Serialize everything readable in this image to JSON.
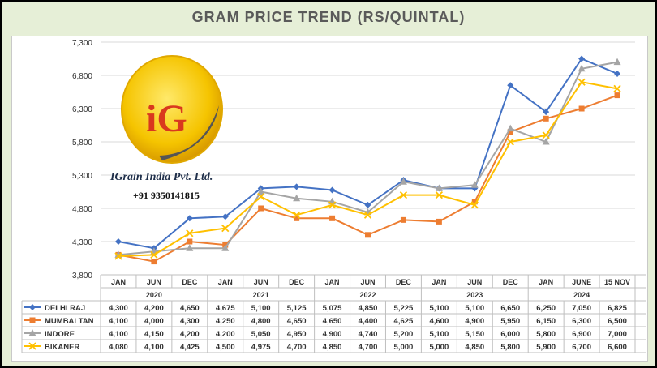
{
  "title": "GRAM PRICE TREND (RS/QUINTAL)",
  "logo": {
    "company": "IGrain India Pvt. Ltd.",
    "phone": "+91 9350141815",
    "mark": "iG"
  },
  "colors": {
    "delhi": "#4472c4",
    "mumbai": "#ed7d31",
    "indore": "#a5a5a5",
    "bikaner": "#ffc000",
    "frame_bg": "#e6efd7"
  },
  "chart_data": {
    "type": "line",
    "title": "GRAM PRICE TREND (RS/QUINTAL)",
    "ylim": [
      3800,
      7300
    ],
    "yticks": [
      "3,800",
      "4,300",
      "4,800",
      "5,300",
      "5,800",
      "6,300",
      "6,800",
      "7,300"
    ],
    "grid": true,
    "legend": "table-below",
    "categories": [
      "JAN",
      "JUN",
      "DEC",
      "JAN",
      "JUN",
      "DEC",
      "JAN",
      "JUN",
      "DEC",
      "JAN",
      "JUN",
      "DEC",
      "JAN",
      "JUNE",
      "15 NOV"
    ],
    "year_labels": [
      {
        "label": "2020",
        "col": 1
      },
      {
        "label": "2021",
        "col": 4
      },
      {
        "label": "2022",
        "col": 7
      },
      {
        "label": "2023",
        "col": 10
      },
      {
        "label": "2024",
        "col": 13
      }
    ],
    "series": [
      {
        "name": "DELHI RAJ",
        "marker": "diamond",
        "color": "#4472c4",
        "values": [
          4300,
          4200,
          4650,
          4675,
          5100,
          5125,
          5075,
          4850,
          5225,
          5100,
          5100,
          6650,
          6250,
          7050,
          6825
        ],
        "labels": [
          "4,300",
          "4,200",
          "4,650",
          "4,675",
          "5,100",
          "5,125",
          "5,075",
          "4,850",
          "5,225",
          "5,100",
          "5,100",
          "6,650",
          "6,250",
          "7,050",
          "6,825"
        ]
      },
      {
        "name": "MUMBAI TAN",
        "marker": "square",
        "color": "#ed7d31",
        "values": [
          4100,
          4000,
          4300,
          4250,
          4800,
          4650,
          4650,
          4400,
          4625,
          4600,
          4900,
          5950,
          6150,
          6300,
          6500
        ],
        "labels": [
          "4,100",
          "4,000",
          "4,300",
          "4,250",
          "4,800",
          "4,650",
          "4,650",
          "4,400",
          "4,625",
          "4,600",
          "4,900",
          "5,950",
          "6,150",
          "6,300",
          "6,500"
        ]
      },
      {
        "name": "INDORE",
        "marker": "triangle",
        "color": "#a5a5a5",
        "values": [
          4100,
          4150,
          4200,
          4200,
          5050,
          4950,
          4900,
          4740,
          5200,
          5100,
          5150,
          6000,
          5800,
          6900,
          7000
        ],
        "labels": [
          "4,100",
          "4,150",
          "4,200",
          "4,200",
          "5,050",
          "4,950",
          "4,900",
          "4,740",
          "5,200",
          "5,100",
          "5,150",
          "6,000",
          "5,800",
          "6,900",
          "7,000"
        ]
      },
      {
        "name": "BIKANER",
        "marker": "x",
        "color": "#ffc000",
        "values": [
          4080,
          4100,
          4425,
          4500,
          4975,
          4700,
          4850,
          4700,
          5000,
          5000,
          4850,
          5800,
          5900,
          6700,
          6600
        ],
        "labels": [
          "4,080",
          "4,100",
          "4,425",
          "4,500",
          "4,975",
          "4,700",
          "4,850",
          "4,700",
          "5,000",
          "5,000",
          "4,850",
          "5,800",
          "5,900",
          "6,700",
          "6,600"
        ]
      }
    ]
  }
}
